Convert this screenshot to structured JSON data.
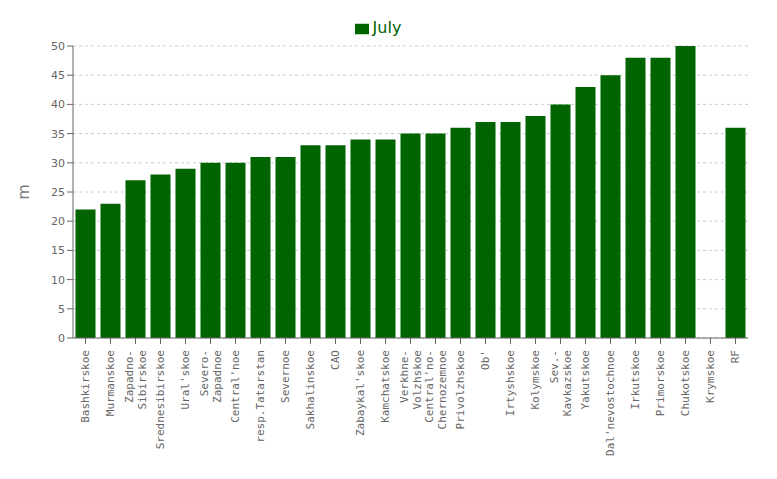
{
  "chart_data": {
    "type": "bar",
    "ylabel": "m",
    "categories": [
      "Bashkirskoe",
      "Murmanskoe",
      "Zapadno-\nSibirskoe",
      "Srednesibirskoe",
      "Ural'skoe",
      "Severo-\nZapadnoe",
      "Central'noe",
      "resp.Tatarstan",
      "Severnoe",
      "Sakhalinskoe",
      "CAO",
      "Zabaykal'skoe",
      "Kamchatskoe",
      "Verkhne-\nVolzhskoe",
      "Central'no-\nChernozemnoe",
      "Privolzhskoe",
      "Ob'",
      "Irtyshskoe",
      "Kolymskoe",
      "Sev.-\nKavkazskoe",
      "Yakutskoe",
      "Dal'nevostochnoe",
      "Irkutskoe",
      "Primorskoe",
      "Chukotskoe",
      "Krymskoe",
      "RF"
    ],
    "series": [
      {
        "name": "July",
        "color": "#006400",
        "values": [
          22,
          23,
          27,
          28,
          29,
          30,
          30,
          31,
          31,
          33,
          33,
          34,
          34,
          35,
          35,
          36,
          37,
          37,
          38,
          40,
          43,
          45,
          48,
          48,
          50,
          0,
          36
        ]
      }
    ],
    "ylim": [
      0,
      50
    ],
    "yticks": [
      0,
      5,
      10,
      15,
      20,
      25,
      30,
      35,
      40,
      45,
      50
    ],
    "grid": true,
    "legend": "top"
  }
}
